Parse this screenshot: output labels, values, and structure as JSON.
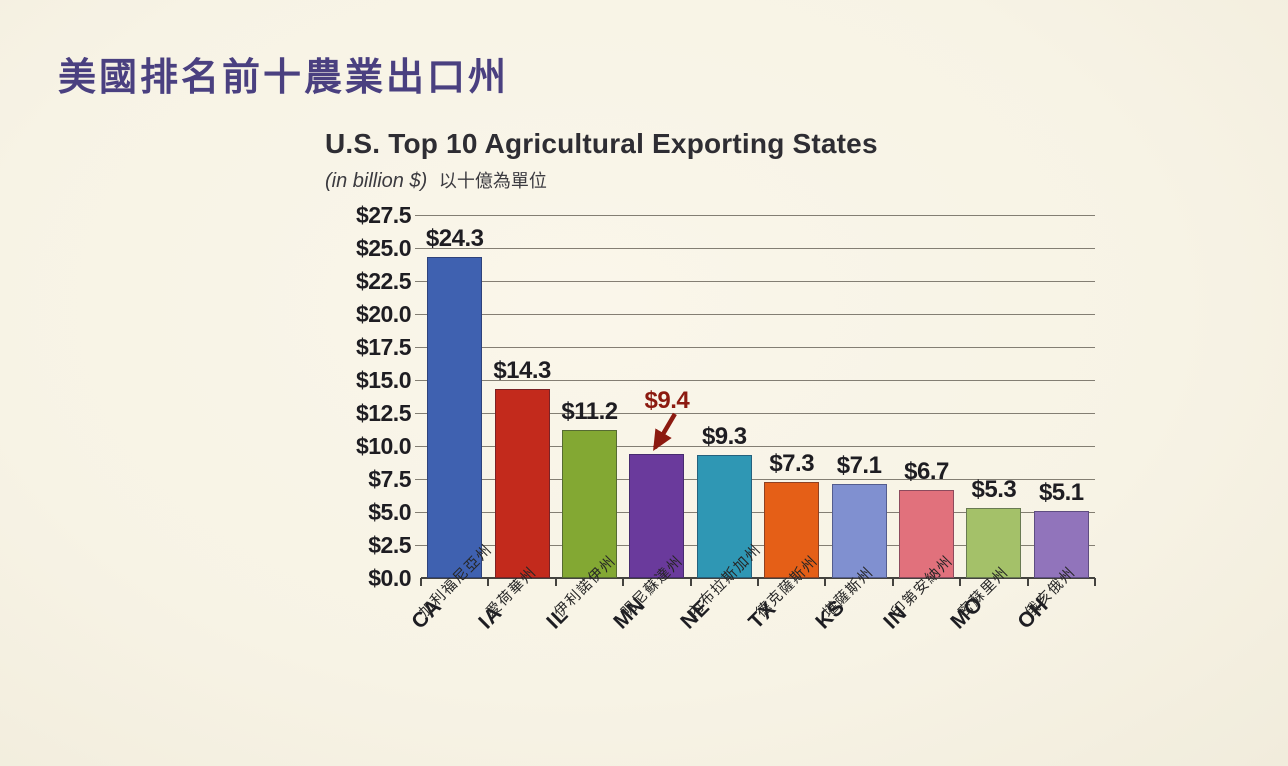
{
  "page_title": "美國排名前十農業出口州",
  "chart": {
    "title": "U.S. Top 10 Agricultural Exporting States",
    "subtitle_en": "(in billion $)",
    "subtitle_zh": "以十億為單位"
  },
  "chart_data": {
    "type": "bar",
    "title": "U.S. Top 10 Agricultural Exporting States",
    "subtitle": "(in billion $) 以十億為單位",
    "categories": [
      "CA",
      "IA",
      "IL",
      "MN",
      "NE",
      "TX",
      "KS",
      "IN",
      "MO",
      "OH"
    ],
    "categories_zh": [
      "加利福尼亞州",
      "愛荷華州",
      "伊利諾伊州",
      "明尼蘇達州",
      "內布拉斯加州",
      "德克薩斯州",
      "堪薩斯州",
      "印第安納州",
      "密蘇里州",
      "俄亥俄州"
    ],
    "values": [
      24.3,
      14.3,
      11.2,
      9.4,
      9.3,
      7.3,
      7.1,
      6.7,
      5.3,
      5.1
    ],
    "value_labels": [
      "$24.3",
      "$14.3",
      "$11.2",
      "$9.4",
      "$9.3",
      "$7.3",
      "$7.1",
      "$6.7",
      "$5.3",
      "$5.1"
    ],
    "bar_colors": [
      "#3f61b0",
      "#c32a1c",
      "#83a833",
      "#6a3a9c",
      "#2f97b4",
      "#e55f17",
      "#8090d0",
      "#e1717c",
      "#a4c169",
      "#9174bb"
    ],
    "xlabel": "",
    "ylabel": "",
    "ylim": [
      0,
      27.5
    ],
    "ytick_step": 2.5,
    "ytick_labels": [
      "$0.0",
      "$2.5",
      "$5.0",
      "$7.5",
      "$10.0",
      "$12.5",
      "$15.0",
      "$17.5",
      "$20.0",
      "$22.5",
      "$25.0",
      "$27.5"
    ],
    "grid": true,
    "legend": false,
    "annotation": {
      "category": "MN",
      "label": "$9.4",
      "color": "#8c1a10",
      "type": "arrow-callout"
    }
  },
  "colors": {
    "background": "#f8f4e7",
    "page_title": "#4a4080",
    "chart_title": "#2e2d33",
    "grid": "#6f695e",
    "axis": "#44433f",
    "label": "#1e1d22",
    "annotation": "#8c1a10"
  }
}
